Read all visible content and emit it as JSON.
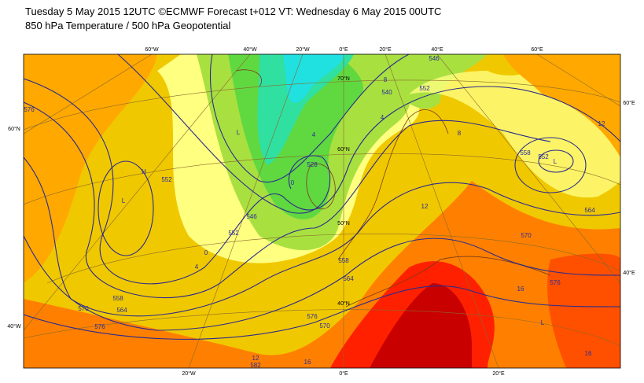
{
  "header": {
    "title": "Tuesday 5 May 2015 12UTC ©ECMWF Forecast t+012 VT: Wednesday 6 May 2015 00UTC",
    "subtitle": "850 hPa Temperature / 500 hPa Geopotential"
  },
  "graticule_labels": [
    "60°W",
    "40°W",
    "20°W",
    "0°E",
    "20°E",
    "40°E",
    "60°E",
    "20°W",
    "0°E",
    "20°E",
    "60°N",
    "40°W",
    "60°E",
    "40°E",
    "70°N",
    "60°N",
    "50°N",
    "40°N"
  ],
  "contour_labels": [
    "552",
    "546",
    "564",
    "558",
    "576",
    "570",
    "582",
    "12",
    "16",
    "576",
    "570",
    "564",
    "558",
    "552",
    "546",
    "540",
    "528",
    "552",
    "558",
    "564",
    "570",
    "576",
    "16",
    "12",
    "16",
    "12",
    "4",
    "0",
    "4",
    "0",
    "8",
    "4",
    "8",
    "552",
    "576"
  ],
  "pressure_centers": [
    "L",
    "L",
    "H",
    "L",
    "L"
  ]
}
